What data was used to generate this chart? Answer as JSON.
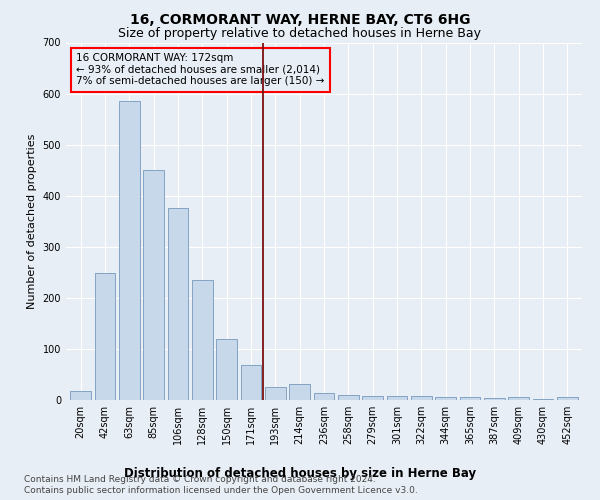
{
  "title": "16, CORMORANT WAY, HERNE BAY, CT6 6HG",
  "subtitle": "Size of property relative to detached houses in Herne Bay",
  "xlabel": "Distribution of detached houses by size in Herne Bay",
  "ylabel": "Number of detached properties",
  "footer_line1": "Contains HM Land Registry data © Crown copyright and database right 2024.",
  "footer_line2": "Contains public sector information licensed under the Open Government Licence v3.0.",
  "annotation_line1": "16 CORMORANT WAY: 172sqm",
  "annotation_line2": "← 93% of detached houses are smaller (2,014)",
  "annotation_line3": "7% of semi-detached houses are larger (150) →",
  "bar_color": "#c8d8eb",
  "bar_edge_color": "#7799bb",
  "reference_line_color": "#7b1010",
  "background_color": "#e8eef5",
  "categories": [
    "20sqm",
    "42sqm",
    "63sqm",
    "85sqm",
    "106sqm",
    "128sqm",
    "150sqm",
    "171sqm",
    "193sqm",
    "214sqm",
    "236sqm",
    "258sqm",
    "279sqm",
    "301sqm",
    "322sqm",
    "344sqm",
    "365sqm",
    "387sqm",
    "409sqm",
    "430sqm",
    "452sqm"
  ],
  "values": [
    18,
    248,
    585,
    450,
    375,
    235,
    120,
    68,
    25,
    32,
    13,
    10,
    7,
    7,
    8,
    5,
    5,
    3,
    5,
    1,
    5
  ],
  "ylim": [
    0,
    700
  ],
  "yticks": [
    0,
    100,
    200,
    300,
    400,
    500,
    600,
    700
  ],
  "grid_color": "#ffffff",
  "title_fontsize": 10,
  "subtitle_fontsize": 9,
  "axis_label_fontsize": 8,
  "tick_fontsize": 7,
  "annotation_fontsize": 7.5,
  "footer_fontsize": 6.5,
  "xlabel_fontsize": 8.5
}
